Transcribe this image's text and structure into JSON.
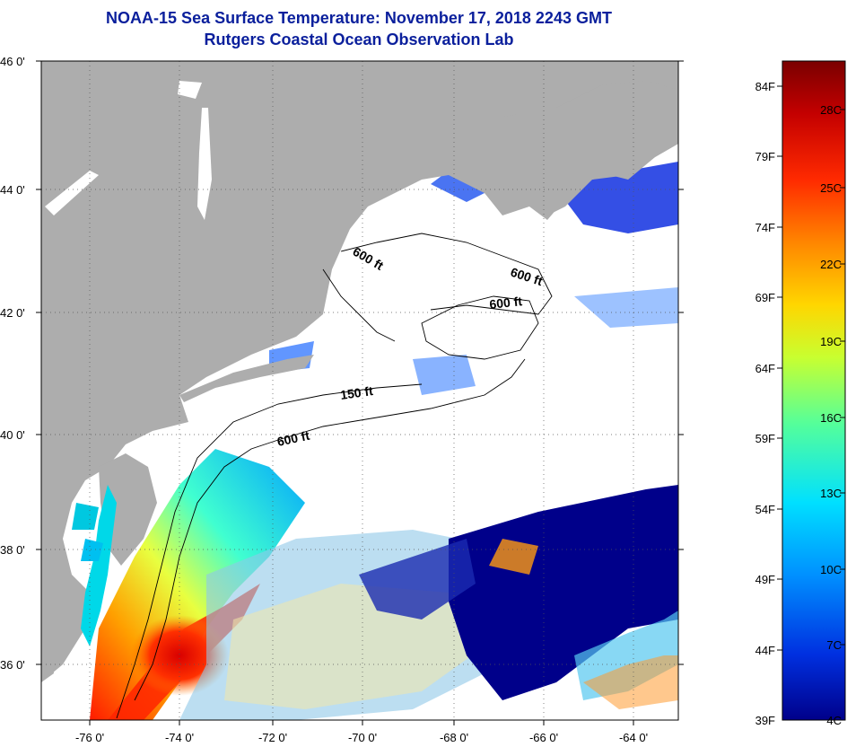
{
  "title": "NOAA-15 Sea Surface Temperature:  November 17, 2018 2243 GMT",
  "subtitle": "Rutgers Coastal Ocean Observation Lab",
  "latitude_labels": [
    "46 0'",
    "44 0'",
    "42 0'",
    "40 0'",
    "38 0'",
    "36 0'"
  ],
  "longitude_labels": [
    "-76 0'",
    "-74 0'",
    "-72 0'",
    "-70 0'",
    "-68 0'",
    "-66 0'",
    "-64 0'"
  ],
  "contour_labels": [
    "600 ft",
    "600 ft",
    "600 ft",
    "150 ft",
    "600 ft"
  ],
  "colorbar": {
    "fahrenheit_labels": [
      "84F",
      "79F",
      "74F",
      "69F",
      "64F",
      "59F",
      "54F",
      "49F",
      "44F",
      "39F"
    ],
    "celsius_labels": [
      "28C",
      "25C",
      "22C",
      "19C",
      "16C",
      "13C",
      "10C",
      "7C",
      "4C"
    ],
    "colors": [
      "#7a0000",
      "#c40000",
      "#ff2a00",
      "#ff8a00",
      "#ffd600",
      "#c8ff30",
      "#55ff9a",
      "#00e0ff",
      "#0090ff",
      "#0030e0",
      "#00008a"
    ]
  },
  "colors": {
    "title": "#0a1f9c",
    "land": "#adadad",
    "no_data": "#ffffff",
    "cold_water": "#00008a",
    "warm_water": "#ff2a00"
  }
}
